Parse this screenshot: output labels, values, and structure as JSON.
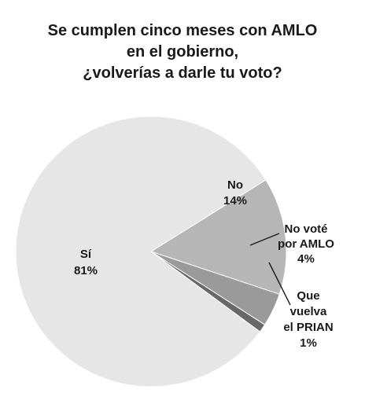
{
  "chart_data": {
    "type": "pie",
    "title": [
      "Se cumplen cinco meses con AMLO",
      "en el gobierno,",
      "¿volverías a darle tu voto?"
    ],
    "slices": [
      {
        "label": [
          "No",
          "14%"
        ],
        "value": 14,
        "color": "#b6b6b6"
      },
      {
        "label": [
          "No voté",
          "por AMLO",
          "4%"
        ],
        "value": 4,
        "color": "#9a9a9a"
      },
      {
        "label": [
          "Que",
          "vuelva",
          "el PRIAN",
          "1%"
        ],
        "value": 1,
        "color": "#686868"
      },
      {
        "label": [
          "Sí",
          "81%"
        ],
        "value": 81,
        "color": "#e6e6e6"
      }
    ]
  }
}
